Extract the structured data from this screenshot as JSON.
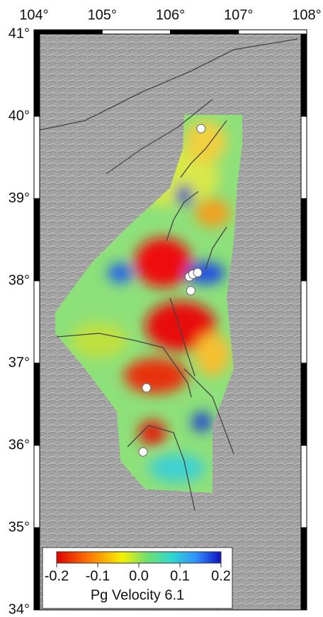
{
  "map": {
    "xlim": [
      104,
      108
    ],
    "ylim": [
      34,
      41
    ],
    "xticks": [
      {
        "value": 104,
        "label": "104°"
      },
      {
        "value": 105,
        "label": "105°"
      },
      {
        "value": 106,
        "label": "106°"
      },
      {
        "value": 107,
        "label": "107°"
      },
      {
        "value": 108,
        "label": "108°"
      }
    ],
    "yticks": [
      {
        "value": 34,
        "label": "34°"
      },
      {
        "value": 35,
        "label": "35°"
      },
      {
        "value": 36,
        "label": "36°"
      },
      {
        "value": 37,
        "label": "37°"
      },
      {
        "value": 38,
        "label": "38°"
      },
      {
        "value": 39,
        "label": "39°"
      },
      {
        "value": 40,
        "label": "40°"
      },
      {
        "value": 41,
        "label": "41°"
      }
    ],
    "stations": [
      {
        "lon": 106.45,
        "lat": 39.85
      },
      {
        "lon": 106.28,
        "lat": 38.05
      },
      {
        "lon": 106.33,
        "lat": 38.08
      },
      {
        "lon": 106.4,
        "lat": 38.1
      },
      {
        "lon": 106.3,
        "lat": 37.88
      },
      {
        "lon": 105.65,
        "lat": 36.7
      },
      {
        "lon": 105.6,
        "lat": 35.92
      }
    ],
    "colorbar": {
      "title": "Pg  Velocity 6.1",
      "lim": [
        -0.2,
        0.2
      ],
      "ticks": [
        -0.2,
        -0.1,
        {
          "value": 0,
          "label": "0.0"
        },
        0.1,
        0.2
      ]
    }
  }
}
